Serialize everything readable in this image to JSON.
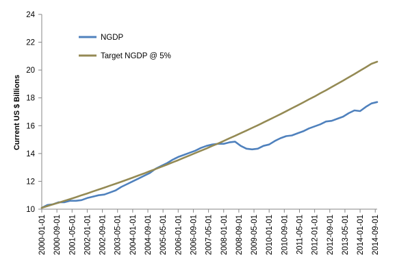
{
  "chart_data": {
    "type": "line",
    "title": "",
    "xlabel": "",
    "ylabel": "Current US $ Billions",
    "ylim": [
      10,
      24
    ],
    "yticks": [
      10,
      12,
      14,
      16,
      18,
      20,
      22,
      24
    ],
    "grid": false,
    "legend_position": "top-left",
    "x_tick_labels": [
      "2000-01-01",
      "2000-09-01",
      "2001-05-01",
      "2002-01-01",
      "2002-09-01",
      "2003-05-01",
      "2004-01-01",
      "2004-09-01",
      "2005-05-01",
      "2006-01-01",
      "2006-09-01",
      "2007-05-01",
      "2008-01-01",
      "2008-09-01",
      "2009-05-01",
      "2010-01-01",
      "2010-09-01",
      "2011-05-01",
      "2012-01-01",
      "2012-09-01",
      "2013-05-01",
      "2014-01-01",
      "2014-09-01"
    ],
    "x": [
      "2000-01",
      "2000-04",
      "2000-07",
      "2000-10",
      "2001-01",
      "2001-04",
      "2001-07",
      "2001-10",
      "2002-01",
      "2002-04",
      "2002-07",
      "2002-10",
      "2003-01",
      "2003-04",
      "2003-07",
      "2003-10",
      "2004-01",
      "2004-04",
      "2004-07",
      "2004-10",
      "2005-01",
      "2005-04",
      "2005-07",
      "2005-10",
      "2006-01",
      "2006-04",
      "2006-07",
      "2006-10",
      "2007-01",
      "2007-04",
      "2007-07",
      "2007-10",
      "2008-01",
      "2008-04",
      "2008-07",
      "2008-10",
      "2009-01",
      "2009-04",
      "2009-07",
      "2009-10",
      "2010-01",
      "2010-04",
      "2010-07",
      "2010-10",
      "2011-01",
      "2011-04",
      "2011-07",
      "2011-10",
      "2012-01",
      "2012-04",
      "2012-07",
      "2012-10",
      "2013-01",
      "2013-04",
      "2013-07",
      "2013-10",
      "2014-01",
      "2014-04",
      "2014-07",
      "2014-10"
    ],
    "series": [
      {
        "name": "NGDP",
        "color": "#4F81BD",
        "values": [
          10.1,
          10.3,
          10.35,
          10.5,
          10.5,
          10.6,
          10.6,
          10.65,
          10.8,
          10.9,
          11.0,
          11.05,
          11.2,
          11.35,
          11.6,
          11.8,
          12.0,
          12.2,
          12.4,
          12.6,
          12.9,
          13.1,
          13.3,
          13.55,
          13.75,
          13.9,
          14.05,
          14.2,
          14.4,
          14.55,
          14.65,
          14.7,
          14.7,
          14.8,
          14.85,
          14.55,
          14.35,
          14.3,
          14.35,
          14.55,
          14.65,
          14.9,
          15.1,
          15.25,
          15.3,
          15.45,
          15.6,
          15.8,
          15.95,
          16.1,
          16.3,
          16.35,
          16.5,
          16.65,
          16.9,
          17.1,
          17.05,
          17.35,
          17.6,
          17.7
        ]
      },
      {
        "name": "Target NGDP @ 5%",
        "color": "#948A54",
        "values": [
          10.1,
          10.22,
          10.35,
          10.47,
          10.6,
          10.73,
          10.86,
          11.0,
          11.13,
          11.27,
          11.41,
          11.55,
          11.69,
          11.83,
          11.97,
          12.12,
          12.27,
          12.42,
          12.57,
          12.73,
          12.88,
          13.04,
          13.2,
          13.36,
          13.52,
          13.69,
          13.86,
          14.03,
          14.2,
          14.37,
          14.55,
          14.72,
          14.9,
          15.09,
          15.27,
          15.46,
          15.65,
          15.84,
          16.03,
          16.23,
          16.43,
          16.63,
          16.83,
          17.04,
          17.25,
          17.46,
          17.67,
          17.89,
          18.1,
          18.33,
          18.55,
          18.78,
          19.01,
          19.24,
          19.48,
          19.71,
          19.96,
          20.2,
          20.45,
          20.6
        ]
      }
    ]
  }
}
